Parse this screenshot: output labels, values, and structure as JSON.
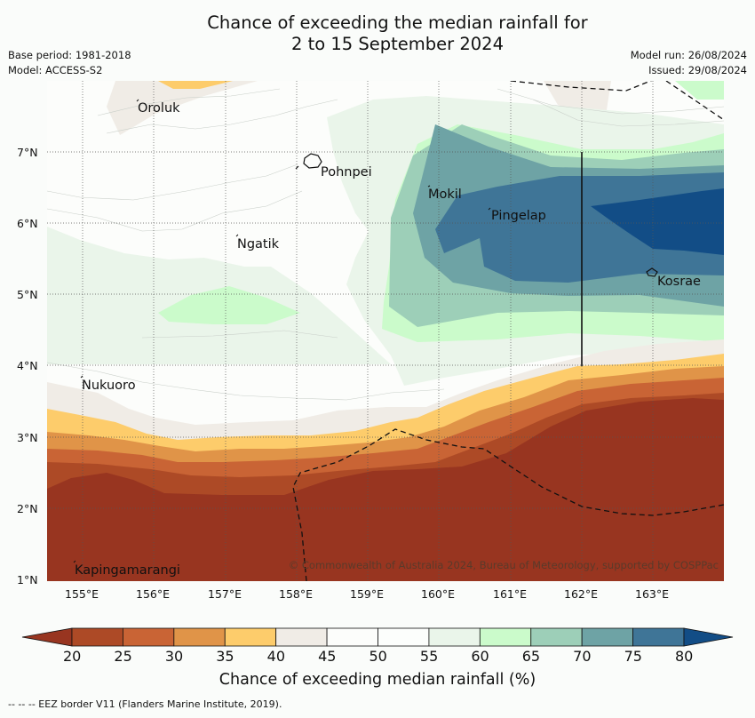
{
  "header": {
    "title_line1": "Chance of exceeding the median rainfall for",
    "title_line2": "2 to 15 September 2024",
    "base_period": "Base period: 1981-2018",
    "model": "Model: ACCESS-S2",
    "model_run": "Model run: 26/08/2024",
    "issued": "Issued: 29/08/2024"
  },
  "map": {
    "lat_labels": [
      "7°N",
      "6°N",
      "5°N",
      "4°N",
      "3°N",
      "2°N",
      "1°N"
    ],
    "lon_labels": [
      "155°E",
      "156°E",
      "157°E",
      "158°E",
      "159°E",
      "160°E",
      "161°E",
      "162°E",
      "163°E"
    ],
    "places": [
      "Oroluk",
      "Pohnpei",
      "Mokil",
      "Pingelap",
      "Ngatik",
      "Kosrae",
      "Nukuoro",
      "Kapingamarangi"
    ],
    "credit": "© Commonwealth of Australia 2024, Bureau of Meteorology, supported by COSPPac"
  },
  "colorbar": {
    "ticks": [
      "20",
      "25",
      "30",
      "35",
      "40",
      "45",
      "50",
      "55",
      "60",
      "65",
      "70",
      "75",
      "80"
    ],
    "colors": [
      "#ad4a26",
      "#c96435",
      "#e09448",
      "#fdcc6b",
      "#f0ece6",
      "#fcfdfb",
      "#fcfefc",
      "#eaf5ea",
      "#cbfbcb",
      "#9dcfb8",
      "#6ea3a5",
      "#3f7597",
      "#124d86"
    ],
    "low_extend_color": "#983520",
    "title": "Chance of exceeding median rainfall (%)"
  },
  "footer": "--  --  -- EEZ border V11 (Flanders Marine Institute, 2019)."
}
